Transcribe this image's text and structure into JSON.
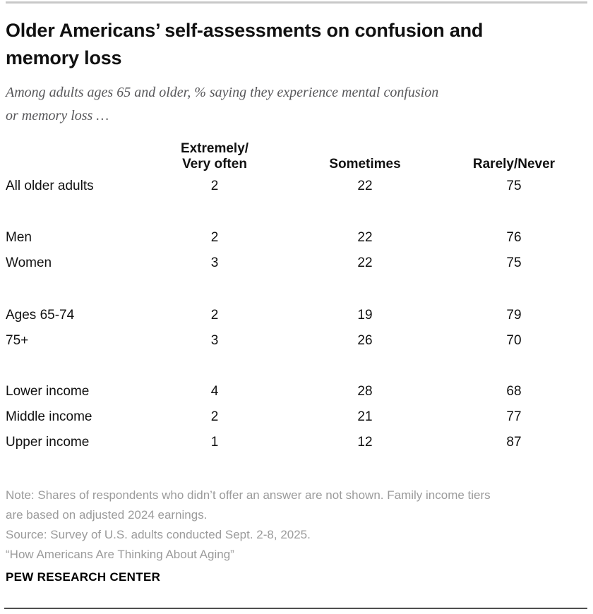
{
  "chart_data": {
    "type": "table",
    "title": "Older Americans’ self-assessments on confusion and memory loss",
    "title_lines": [
      "Older Americans’ self-assessments on confusion and",
      "memory loss"
    ],
    "subtitle": "Among adults ages 65 and older, % saying they experience mental confusion or memory loss …",
    "subtitle_lines": [
      "Among adults ages 65 and older, % saying they experience mental confusion",
      "or memory loss …"
    ],
    "row_header": "",
    "columns": [
      "Extremely/\nVery often",
      "Sometimes",
      "Rarely/Never"
    ],
    "rows": [
      {
        "label": "All older adults",
        "values": [
          2,
          22,
          75
        ]
      },
      {
        "label": "Men",
        "values": [
          2,
          22,
          76
        ]
      },
      {
        "label": "Women",
        "values": [
          3,
          22,
          75
        ]
      },
      {
        "label": "Ages 65-74",
        "values": [
          2,
          19,
          79
        ]
      },
      {
        "label": "75+",
        "values": [
          3,
          26,
          70
        ]
      },
      {
        "label": "Lower income",
        "values": [
          4,
          28,
          68
        ]
      },
      {
        "label": "Middle income",
        "values": [
          2,
          21,
          77
        ]
      },
      {
        "label": "Upper income",
        "values": [
          1,
          12,
          87
        ]
      }
    ],
    "row_groups": [
      [
        "All older adults"
      ],
      [
        "Men",
        "Women"
      ],
      [
        "Ages 65-74",
        "75+"
      ],
      [
        "Lower income",
        "Middle income",
        "Upper income"
      ]
    ],
    "note_lines": [
      "Note: Shares of respondents who didn’t offer an answer are not shown. Family income tiers",
      "are based on adjusted 2024 earnings.",
      "Source: Survey of U.S. adults conducted Sept. 2-8, 2025.",
      "“How Americans Are Thinking About Aging”"
    ],
    "footer": "PEW RESEARCH CENTER"
  },
  "colors": {
    "title_text": "#111111",
    "subtitle_text": "#58585b",
    "note_text": "#9b9b9b",
    "top_rule": "#c8c8c8",
    "bottom_rule": "#4f4f4f",
    "background": "#ffffff"
  }
}
